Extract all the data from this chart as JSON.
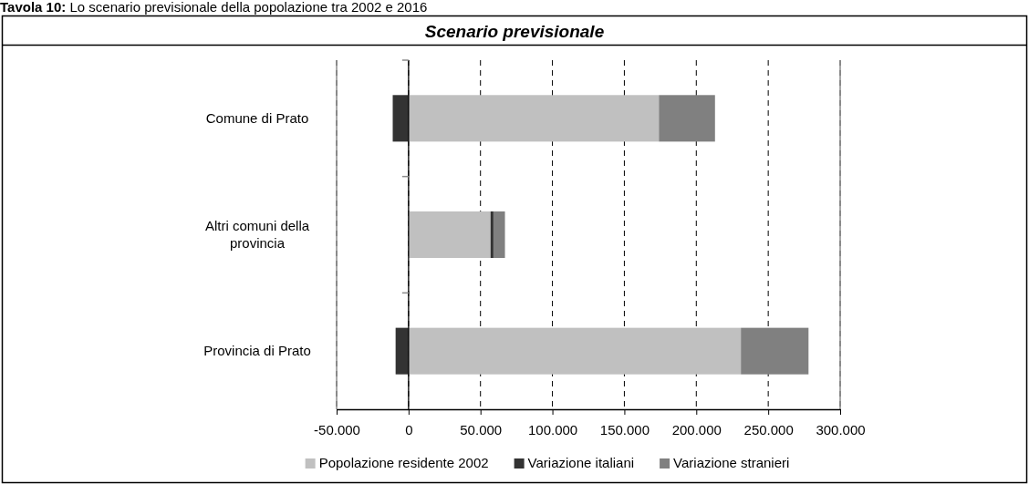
{
  "chart_data": {
    "type": "bar",
    "orientation": "horizontal",
    "stacked": true,
    "title": "Tavola 10: Lo scenario previsionale della popolazione tra 2002 e 2016",
    "subtitle": "Scenario previsionale",
    "categories": [
      "Comune di Prato",
      "Altri comuni della provincia",
      "Provincia di Prato"
    ],
    "series": [
      {
        "name": "Popolazione residente 2002",
        "color": "#c0c0c0",
        "values": [
          174000,
          57000,
          231000
        ]
      },
      {
        "name": "Variazione italiani",
        "color": "#333333",
        "values": [
          -11000,
          2000,
          -9000
        ]
      },
      {
        "name": "Variazione stranieri",
        "color": "#808080",
        "values": [
          39000,
          8000,
          47000
        ]
      }
    ],
    "xlim": [
      -50000,
      300000
    ],
    "xticks": [
      {
        "value": -50000,
        "label": "-50.000"
      },
      0,
      {
        "value": 50000,
        "label": "50.000"
      },
      {
        "value": 100000,
        "label": "100.000"
      },
      {
        "value": 150000,
        "label": "150.000"
      },
      {
        "value": 200000,
        "label": "200.000"
      },
      {
        "value": 250000,
        "label": "250.000"
      },
      {
        "value": 300000,
        "label": "300.000"
      }
    ],
    "grid": "x",
    "legend": "bottom"
  }
}
